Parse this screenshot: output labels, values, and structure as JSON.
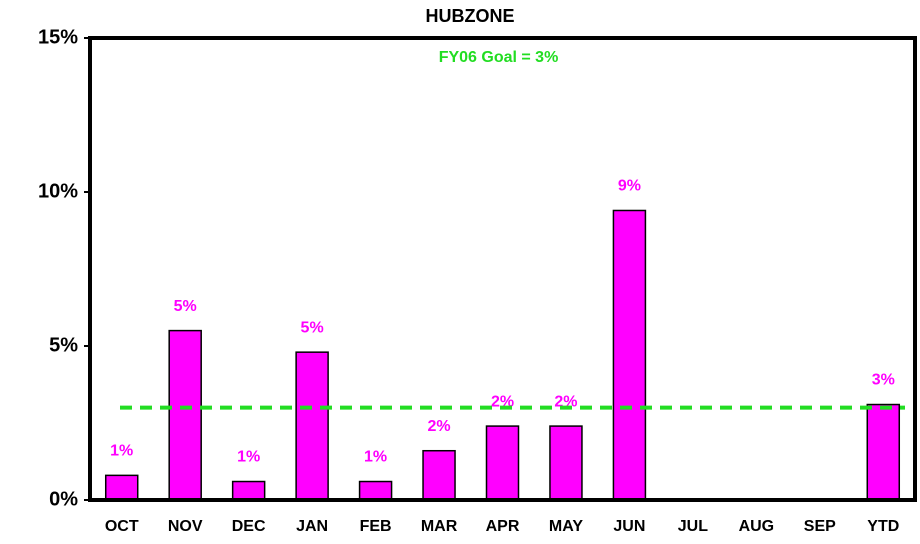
{
  "chart_data": {
    "type": "bar",
    "title": "HUBZONE",
    "categories": [
      "OCT",
      "NOV",
      "DEC",
      "JAN",
      "FEB",
      "MAR",
      "APR",
      "MAY",
      "JUN",
      "JUL",
      "AUG",
      "SEP",
      "YTD"
    ],
    "values": [
      0.8,
      5.5,
      0.6,
      4.8,
      0.6,
      1.6,
      2.4,
      2.4,
      9.4,
      null,
      null,
      null,
      3.1
    ],
    "value_labels": [
      "1%",
      "5%",
      "1%",
      "5%",
      "1%",
      "2%",
      "2%",
      "2%",
      "9%",
      null,
      null,
      null,
      "3%"
    ],
    "color": "#ff00ff",
    "ylim": [
      0,
      15
    ],
    "yticks": [
      {
        "value": 0,
        "label": "0%"
      },
      {
        "value": 5,
        "label": "5%"
      },
      {
        "value": 10,
        "label": "10%"
      },
      {
        "value": 15,
        "label": "15%"
      }
    ],
    "goal": {
      "value": 3,
      "label": "FY06 Goal = 3%",
      "color": "#22dd22"
    }
  }
}
